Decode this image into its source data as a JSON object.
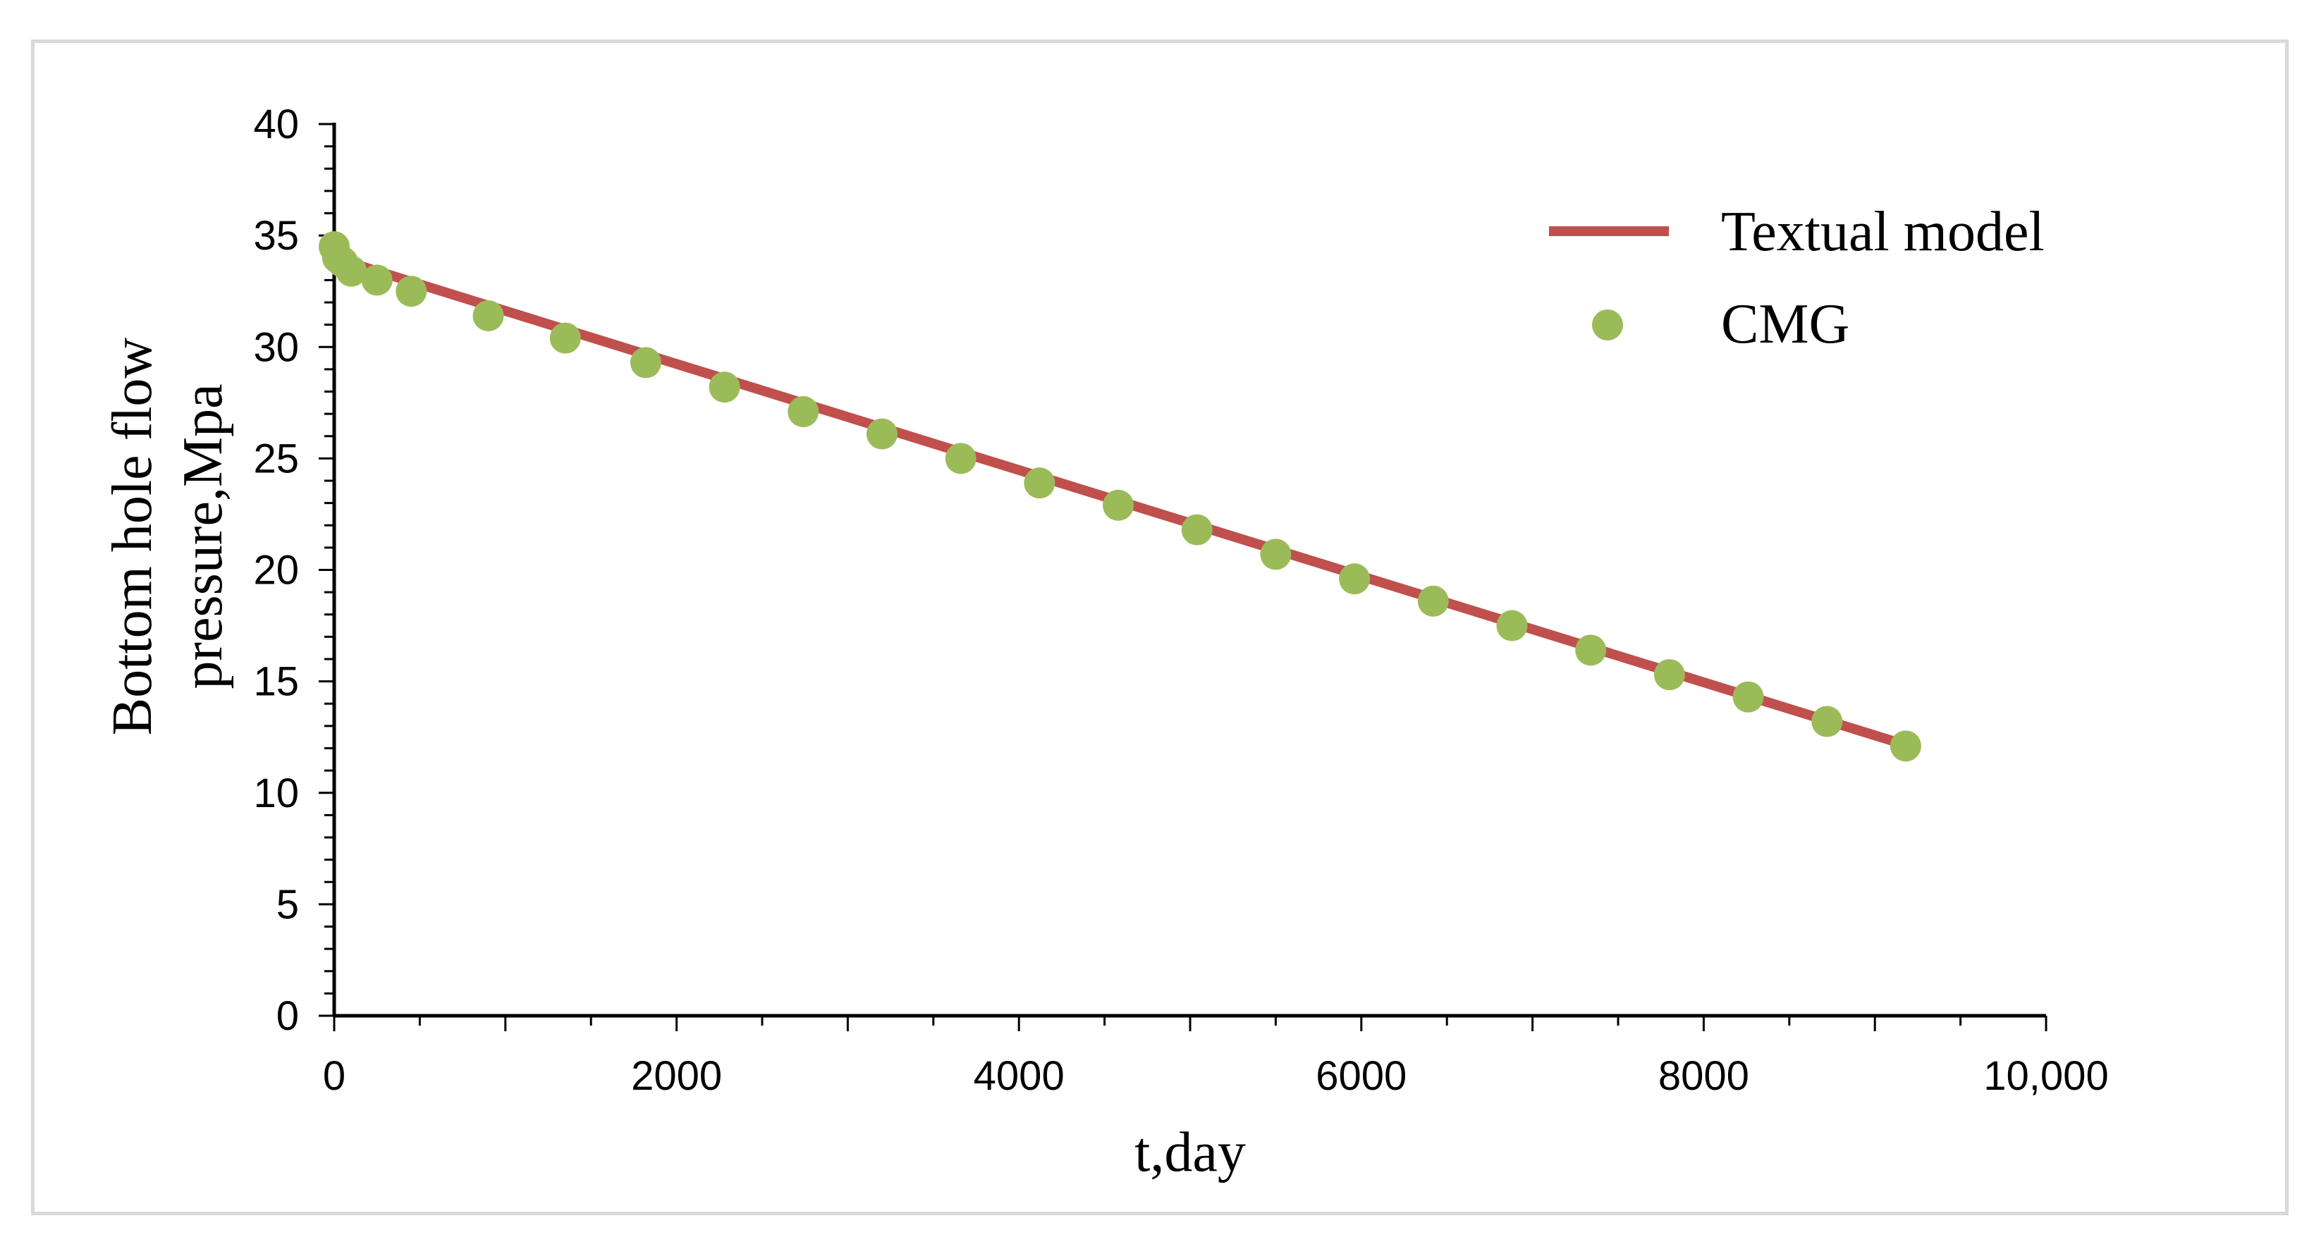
{
  "chart_data": {
    "type": "line",
    "xlabel": "t,day",
    "ylabel_lines": [
      "Bottom hole flow",
      "pressure,Mpa"
    ],
    "xlim": [
      0,
      10000
    ],
    "ylim": [
      0,
      40
    ],
    "x_ticks": [
      0,
      2000,
      4000,
      6000,
      8000,
      10000
    ],
    "x_tick_labels": [
      "0",
      "2000",
      "4000",
      "6000",
      "8000",
      "10,000"
    ],
    "y_ticks": [
      0,
      5,
      10,
      15,
      20,
      25,
      30,
      35,
      40
    ],
    "y_tick_labels": [
      "0",
      "5",
      "10",
      "15",
      "20",
      "25",
      "30",
      "35",
      "40"
    ],
    "grid": false,
    "legend_position": "top-right",
    "series": [
      {
        "name": "Textual model",
        "kind": "line",
        "color": "#c0504d",
        "x": [
          0,
          9200
        ],
        "y": [
          34.0,
          12.1
        ]
      },
      {
        "name": "CMG",
        "kind": "scatter",
        "color": "#9bbb59",
        "x": [
          0,
          20,
          50,
          100,
          250,
          450,
          900,
          1350,
          1820,
          2280,
          2740,
          3200,
          3660,
          4120,
          4580,
          5040,
          5500,
          5960,
          6420,
          6880,
          7340,
          7800,
          8260,
          8720,
          9180
        ],
        "y": [
          34.5,
          34.0,
          33.8,
          33.4,
          33.0,
          32.5,
          31.4,
          30.4,
          29.3,
          28.2,
          27.1,
          26.1,
          25.0,
          23.9,
          22.9,
          21.8,
          20.7,
          19.6,
          18.6,
          17.5,
          16.4,
          15.3,
          14.3,
          13.2,
          12.1
        ]
      }
    ]
  }
}
